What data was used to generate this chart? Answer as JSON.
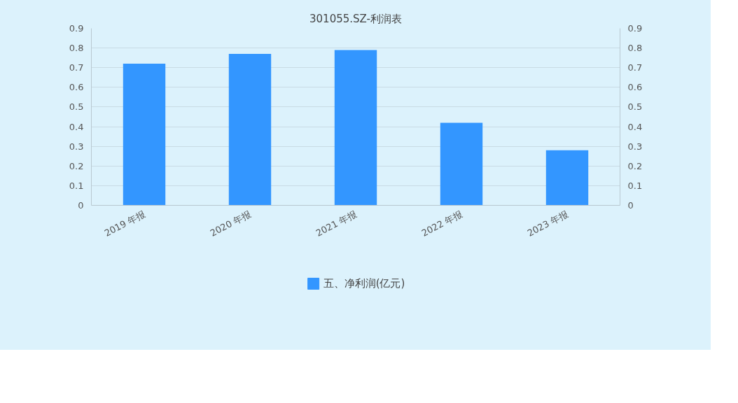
{
  "chart_data": {
    "type": "bar",
    "title": "301055.SZ-利润表",
    "categories": [
      "2019 年报",
      "2020 年报",
      "2021 年报",
      "2022 年报",
      "2023 年报"
    ],
    "series": [
      {
        "name": "五、净利润(亿元)",
        "color": "#3396ff",
        "values": [
          0.72,
          0.77,
          0.79,
          0.42,
          0.28
        ]
      }
    ],
    "ylim": [
      0,
      0.9
    ],
    "yticks": [
      0,
      0.1,
      0.2,
      0.3,
      0.4,
      0.5,
      0.6,
      0.7,
      0.8,
      0.9
    ],
    "y2lim": [
      0,
      0.9
    ],
    "y2ticks": [
      0,
      0.1,
      0.2,
      0.3,
      0.4,
      0.5,
      0.6,
      0.7,
      0.8,
      0.9
    ],
    "grid": "y",
    "legend": "bottom"
  }
}
